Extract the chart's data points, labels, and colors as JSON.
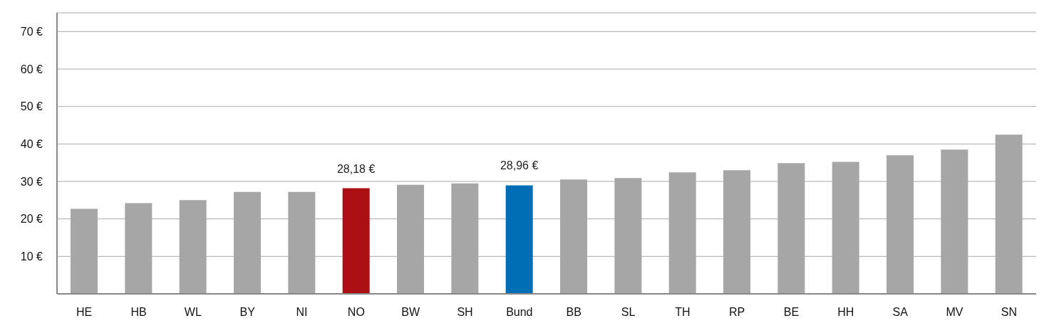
{
  "chart_data": {
    "type": "bar",
    "categories": [
      "HE",
      "HB",
      "WL",
      "BY",
      "NI",
      "NO",
      "BW",
      "SH",
      "Bund",
      "BB",
      "SL",
      "TH",
      "RP",
      "BE",
      "HH",
      "SA",
      "MV",
      "SN"
    ],
    "values": [
      22.7,
      24.2,
      25.0,
      27.2,
      27.2,
      28.18,
      29.1,
      29.5,
      28.96,
      30.5,
      30.9,
      32.4,
      33.0,
      34.9,
      35.2,
      37.0,
      38.5,
      42.5
    ],
    "colors": [
      "#a6a6a6",
      "#a6a6a6",
      "#a6a6a6",
      "#a6a6a6",
      "#a6a6a6",
      "#ad1014",
      "#a6a6a6",
      "#a6a6a6",
      "#006eb5",
      "#a6a6a6",
      "#a6a6a6",
      "#a6a6a6",
      "#a6a6a6",
      "#a6a6a6",
      "#a6a6a6",
      "#a6a6a6",
      "#a6a6a6",
      "#a6a6a6"
    ],
    "value_labels": [
      null,
      null,
      null,
      null,
      null,
      "28,18 €",
      null,
      null,
      "28,96 €",
      null,
      null,
      null,
      null,
      null,
      null,
      null,
      null,
      null
    ],
    "ylim": [
      0,
      75
    ],
    "yticks": [
      {
        "value": 10,
        "label": "10 €"
      },
      {
        "value": 20,
        "label": "20 €"
      },
      {
        "value": 30,
        "label": "30 €"
      },
      {
        "value": 40,
        "label": "40 €"
      },
      {
        "value": 50,
        "label": "50 €"
      },
      {
        "value": 60,
        "label": "60 €"
      },
      {
        "value": 70,
        "label": "70 €"
      }
    ],
    "grid": "y",
    "legend": false
  }
}
